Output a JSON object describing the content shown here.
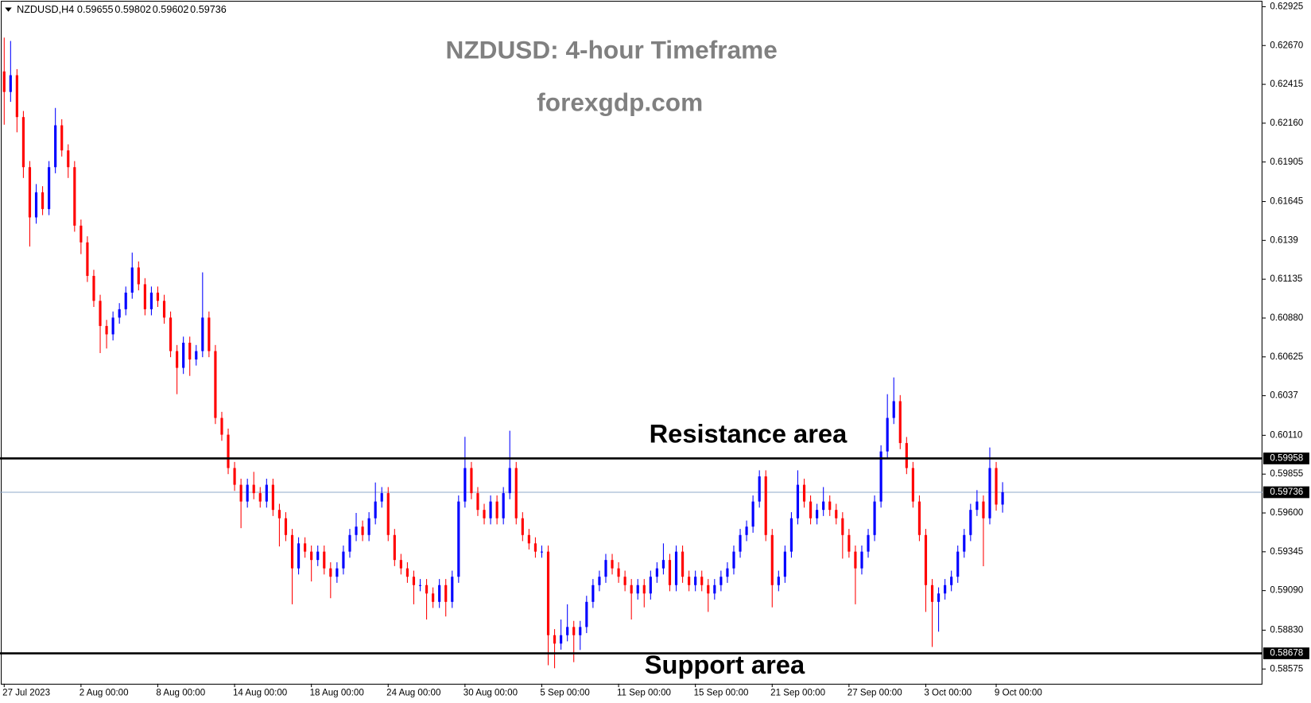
{
  "chart_data": {
    "type": "candlestick",
    "header_symbol": "NZDUSD,H4",
    "header_values": [
      0.59655,
      0.59802,
      0.59602,
      0.59736
    ],
    "title": "NZDUSD: 4-hour Timeframe",
    "subtitle": "forexgdp.com",
    "annotations": [
      {
        "text": "Resistance area",
        "value": 0.59958
      },
      {
        "text": "Support area",
        "value": 0.58678
      }
    ],
    "last_price": 0.59736,
    "bull_color": "#0000ff",
    "bear_color": "#ff0000",
    "level_color": "#000000",
    "last_color": "#8fa8c8",
    "ylim": [
      0.58478,
      0.62969
    ],
    "yticks": [
      0.62925,
      {
        "value": 0.6267,
        "label": "0.62670"
      },
      0.62415,
      {
        "value": 0.6216,
        "label": "0.62160"
      },
      0.61905,
      0.61645,
      0.6139,
      0.61135,
      {
        "value": 0.6088,
        "label": "0.60880"
      },
      0.60625,
      0.6037,
      {
        "value": 0.6011,
        "label": "0.60110"
      },
      0.59855,
      {
        "value": 0.596,
        "label": "0.59600"
      },
      0.59345,
      {
        "value": 0.5909,
        "label": "0.59090"
      },
      {
        "value": 0.5883,
        "label": "0.58830"
      },
      0.58575
    ],
    "categories": [
      "27 Jul 2023",
      null,
      null,
      null,
      null,
      null,
      null,
      null,
      null,
      null,
      null,
      null,
      "2 Aug 00:00",
      null,
      null,
      null,
      null,
      null,
      null,
      null,
      null,
      null,
      null,
      null,
      "8 Aug 00:00",
      null,
      null,
      null,
      null,
      null,
      null,
      null,
      null,
      null,
      null,
      null,
      "14 Aug 00:00",
      null,
      null,
      null,
      null,
      null,
      null,
      null,
      null,
      null,
      null,
      null,
      "18 Aug 00:00",
      null,
      null,
      null,
      null,
      null,
      null,
      null,
      null,
      null,
      null,
      null,
      "24 Aug 00:00",
      null,
      null,
      null,
      null,
      null,
      null,
      null,
      null,
      null,
      null,
      null,
      "30 Aug 00:00",
      null,
      null,
      null,
      null,
      null,
      null,
      null,
      null,
      null,
      null,
      null,
      "5 Sep 00:00",
      null,
      null,
      null,
      null,
      null,
      null,
      null,
      null,
      null,
      null,
      null,
      "11 Sep 00:00",
      null,
      null,
      null,
      null,
      null,
      null,
      null,
      null,
      null,
      null,
      null,
      "15 Sep 00:00",
      null,
      null,
      null,
      null,
      null,
      null,
      null,
      null,
      null,
      null,
      null,
      "21 Sep 00:00",
      null,
      null,
      null,
      null,
      null,
      null,
      null,
      null,
      null,
      null,
      null,
      "27 Sep 00:00",
      null,
      null,
      null,
      null,
      null,
      null,
      null,
      null,
      null,
      null,
      null,
      "3 Oct 00:00",
      null,
      null,
      null,
      null,
      null,
      null,
      null,
      null,
      null,
      null,
      "9 Oct 00:00",
      null
    ],
    "open": [
      0.625,
      0.62365,
      0.62475,
      0.622,
      0.61871,
      0.61541,
      0.61706,
      0.61596,
      0.61871,
      0.62146,
      0.61981,
      0.61871,
      0.61487,
      0.61377,
      0.61157,
      0.60993,
      0.60828,
      0.60773,
      0.60883,
      0.60938,
      0.61047,
      0.61212,
      0.61102,
      0.60938,
      0.61047,
      0.60993,
      0.60883,
      0.60663,
      0.60553,
      0.60718,
      0.60608,
      0.60663,
      0.60883,
      0.60663,
      0.60224,
      0.60114,
      0.59895,
      0.59785,
      0.59675,
      0.59785,
      0.5973,
      0.59675,
      0.59785,
      0.5962,
      0.59565,
      0.59455,
      0.59236,
      0.594,
      0.59346,
      0.59291,
      0.59346,
      0.59236,
      0.59181,
      0.59236,
      0.59346,
      0.59455,
      0.5951,
      0.59455,
      0.59565,
      0.59675,
      0.5973,
      0.59455,
      0.59291,
      0.59236,
      0.59181,
      0.59126,
      0.59126,
      0.59071,
      0.59016,
      0.59126,
      0.59016,
      0.59181,
      0.59675,
      0.59895,
      0.5973,
      0.5962,
      0.59565,
      0.59675,
      0.59565,
      0.5973,
      0.59895,
      0.59565,
      0.59455,
      0.594,
      0.59346,
      0.59346,
      0.58797,
      0.58742,
      0.58797,
      0.58851,
      0.58797,
      0.58851,
      0.59016,
      0.59126,
      0.59181,
      0.59291,
      0.59236,
      0.59181,
      0.59126,
      0.59071,
      0.59126,
      0.59071,
      0.59181,
      0.59236,
      0.59291,
      0.59126,
      0.59346,
      0.59181,
      0.59126,
      0.59181,
      0.59126,
      0.59071,
      0.59126,
      0.59181,
      0.59236,
      0.59346,
      0.59455,
      0.5951,
      0.59675,
      0.5984,
      0.59455,
      0.59126,
      0.59181,
      0.59346,
      0.59565,
      0.59785,
      0.59675,
      0.59565,
      0.5962,
      0.59675,
      0.5962,
      0.59565,
      0.59455,
      0.59346,
      0.59236,
      0.59346,
      0.59455,
      0.59675,
      0.60004,
      0.60224,
      0.60334,
      0.60059,
      0.59895,
      0.59675,
      0.59455,
      0.59126,
      0.59016,
      0.59071,
      0.59126,
      0.59181,
      0.59346,
      0.59455,
      0.5962,
      0.59675,
      0.59565,
      0.59895,
      0.59655
    ],
    "close": [
      0.62365,
      0.62475,
      0.622,
      0.61871,
      0.61541,
      0.61706,
      0.61596,
      0.61871,
      0.62146,
      0.61981,
      0.61871,
      0.61487,
      0.61377,
      0.61157,
      0.60993,
      0.60828,
      0.60773,
      0.60883,
      0.60938,
      0.61047,
      0.61212,
      0.61102,
      0.60938,
      0.61047,
      0.60993,
      0.60883,
      0.60663,
      0.60553,
      0.60718,
      0.60608,
      0.60663,
      0.60883,
      0.60663,
      0.60224,
      0.60114,
      0.59895,
      0.59785,
      0.59675,
      0.59785,
      0.5973,
      0.59675,
      0.59785,
      0.5962,
      0.59565,
      0.59455,
      0.59236,
      0.594,
      0.59346,
      0.59291,
      0.59346,
      0.59236,
      0.59181,
      0.59236,
      0.59346,
      0.59455,
      0.5951,
      0.59455,
      0.59565,
      0.59675,
      0.5973,
      0.59455,
      0.59291,
      0.59236,
      0.59181,
      0.59126,
      0.59126,
      0.59071,
      0.59016,
      0.59126,
      0.59016,
      0.59181,
      0.59675,
      0.59895,
      0.5973,
      0.5962,
      0.59565,
      0.59675,
      0.59565,
      0.5973,
      0.59895,
      0.59565,
      0.59455,
      0.594,
      0.59346,
      0.59346,
      0.58797,
      0.58742,
      0.58797,
      0.58851,
      0.58797,
      0.58851,
      0.59016,
      0.59126,
      0.59181,
      0.59291,
      0.59236,
      0.59181,
      0.59126,
      0.59071,
      0.59126,
      0.59071,
      0.59181,
      0.59236,
      0.59291,
      0.59126,
      0.59346,
      0.59181,
      0.59126,
      0.59181,
      0.59126,
      0.59071,
      0.59126,
      0.59181,
      0.59236,
      0.59346,
      0.59455,
      0.5951,
      0.59675,
      0.5984,
      0.59455,
      0.59126,
      0.59181,
      0.59346,
      0.59565,
      0.59785,
      0.59675,
      0.59565,
      0.5962,
      0.59675,
      0.5962,
      0.59565,
      0.59455,
      0.59346,
      0.59236,
      0.59346,
      0.59455,
      0.59675,
      0.60004,
      0.60224,
      0.60334,
      0.60059,
      0.59895,
      0.59675,
      0.59455,
      0.59126,
      0.59016,
      0.59071,
      0.59126,
      0.59181,
      0.59346,
      0.59455,
      0.5962,
      0.59675,
      0.59565,
      0.59895,
      0.59655,
      0.59736
    ],
    "high": [
      0.62722,
      0.627,
      0.62515,
      0.6224,
      0.61911,
      0.6176,
      0.61746,
      0.61911,
      0.6226,
      0.62186,
      0.62021,
      0.61911,
      0.61527,
      0.61417,
      0.61197,
      0.61033,
      0.60868,
      0.60923,
      0.60978,
      0.61087,
      0.6131,
      0.61252,
      0.61142,
      0.61087,
      0.61087,
      0.61033,
      0.60923,
      0.60703,
      0.60758,
      0.60758,
      0.60703,
      0.6118,
      0.60923,
      0.60703,
      0.60264,
      0.60154,
      0.59935,
      0.59825,
      0.59825,
      0.5987,
      0.5977,
      0.59825,
      0.59825,
      0.5966,
      0.59605,
      0.59495,
      0.5944,
      0.5944,
      0.59386,
      0.59386,
      0.59386,
      0.59276,
      0.59276,
      0.59386,
      0.59495,
      0.596,
      0.5955,
      0.59605,
      0.598,
      0.5977,
      0.5977,
      0.59495,
      0.59331,
      0.59276,
      0.59221,
      0.59166,
      0.59166,
      0.59111,
      0.59166,
      0.59166,
      0.59221,
      0.59715,
      0.601,
      0.59935,
      0.5977,
      0.5966,
      0.59715,
      0.59715,
      0.5977,
      0.6014,
      0.59935,
      0.59605,
      0.59495,
      0.5944,
      0.59386,
      0.59386,
      0.58837,
      0.589,
      0.59,
      0.58891,
      0.58891,
      0.59056,
      0.59166,
      0.59221,
      0.59331,
      0.59331,
      0.59276,
      0.59221,
      0.59166,
      0.59166,
      0.59166,
      0.59221,
      0.59276,
      0.594,
      0.59331,
      0.59386,
      0.59386,
      0.59221,
      0.59221,
      0.59221,
      0.59166,
      0.59166,
      0.59221,
      0.59276,
      0.59386,
      0.59495,
      0.5955,
      0.59715,
      0.5988,
      0.5988,
      0.59495,
      0.59221,
      0.59386,
      0.59605,
      0.5988,
      0.59825,
      0.59715,
      0.5966,
      0.5977,
      0.59715,
      0.5966,
      0.59605,
      0.59495,
      0.59386,
      0.59386,
      0.59495,
      0.59715,
      0.60044,
      0.6038,
      0.6049,
      0.60374,
      0.60099,
      0.59935,
      0.59715,
      0.59495,
      0.59166,
      0.59111,
      0.59166,
      0.59221,
      0.59386,
      0.59495,
      0.5966,
      0.5975,
      0.59715,
      0.6003,
      0.59935,
      0.59802
    ],
    "low": [
      0.6215,
      0.623,
      0.621,
      0.618,
      0.6135,
      0.615,
      0.61556,
      0.61556,
      0.61831,
      0.61941,
      0.618,
      0.61447,
      0.613,
      0.61117,
      0.60953,
      0.6065,
      0.6068,
      0.60733,
      0.60843,
      0.60898,
      0.61007,
      0.61062,
      0.60898,
      0.60898,
      0.60953,
      0.60843,
      0.60623,
      0.6038,
      0.60513,
      0.605,
      0.60568,
      0.60623,
      0.60623,
      0.60184,
      0.60074,
      0.59855,
      0.59745,
      0.595,
      0.59635,
      0.5969,
      0.59635,
      0.59635,
      0.5958,
      0.5938,
      0.59415,
      0.59,
      0.59196,
      0.59306,
      0.5915,
      0.59251,
      0.59196,
      0.5904,
      0.59141,
      0.59196,
      0.59306,
      0.59415,
      0.59415,
      0.59415,
      0.59525,
      0.59635,
      0.59415,
      0.59251,
      0.59196,
      0.59141,
      0.59,
      0.59086,
      0.589,
      0.58976,
      0.58976,
      0.5892,
      0.58976,
      0.59141,
      0.59635,
      0.5969,
      0.5958,
      0.59525,
      0.59525,
      0.59525,
      0.59525,
      0.5969,
      0.59525,
      0.59415,
      0.5936,
      0.59306,
      0.59306,
      0.586,
      0.5858,
      0.58702,
      0.58757,
      0.5862,
      0.587,
      0.58811,
      0.58976,
      0.59086,
      0.59141,
      0.59196,
      0.59141,
      0.59086,
      0.589,
      0.59031,
      0.5898,
      0.59031,
      0.59141,
      0.59196,
      0.59086,
      0.59086,
      0.59141,
      0.59086,
      0.59086,
      0.59086,
      0.5895,
      0.59031,
      0.59086,
      0.59141,
      0.59196,
      0.59306,
      0.59415,
      0.5947,
      0.59635,
      0.59415,
      0.5898,
      0.59086,
      0.59141,
      0.59306,
      0.59525,
      0.59635,
      0.59525,
      0.59525,
      0.5958,
      0.5958,
      0.59525,
      0.593,
      0.59306,
      0.59,
      0.59196,
      0.59306,
      0.59415,
      0.59635,
      0.59964,
      0.60184,
      0.60019,
      0.59855,
      0.59635,
      0.59415,
      0.5895,
      0.5872,
      0.5882,
      0.59031,
      0.59086,
      0.59141,
      0.59306,
      0.59415,
      0.5958,
      0.5925,
      0.59525,
      0.59615,
      0.59602
    ]
  }
}
